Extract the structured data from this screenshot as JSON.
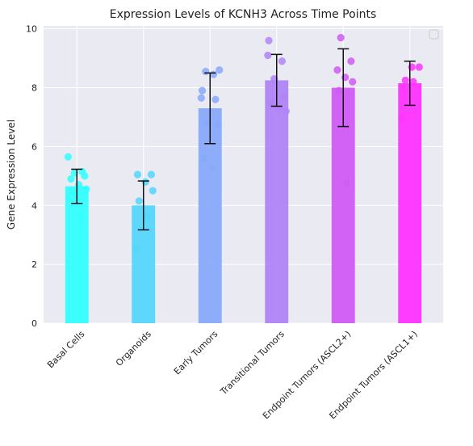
{
  "chart_data": {
    "type": "bar",
    "title": "Expression Levels of KCNH3 Across Time Points",
    "xlabel": "",
    "ylabel": "Gene Expression Level",
    "ylim": [
      0,
      10.1
    ],
    "yticks": [
      0,
      2,
      4,
      6,
      8,
      10
    ],
    "grid": true,
    "legend": "top-right",
    "categories": [
      "Basal Cells",
      "Organoids",
      "Early Tumors",
      "Transitional Tumors",
      "Endpoint Tumors (ASCL2+)",
      "Endpoint Tumors (ASCL1+)"
    ],
    "values": [
      4.65,
      4.0,
      7.3,
      8.25,
      8.0,
      8.15
    ],
    "error": [
      0.58,
      0.83,
      1.2,
      0.88,
      1.32,
      0.75
    ],
    "colors": [
      "#33ffff",
      "#55d6fb",
      "#88a9fa",
      "#b084f7",
      "#d05bf4",
      "#fe33ff"
    ],
    "points": [
      [
        5.65,
        5.15,
        5.1,
        5.0,
        4.9,
        4.7,
        4.55,
        4.45,
        3.6
      ],
      [
        5.05,
        5.05,
        4.8,
        4.5,
        4.15,
        3.6,
        2.5
      ],
      [
        8.6,
        8.55,
        8.45,
        7.9,
        7.65,
        7.6,
        6.8,
        6.75,
        5.6,
        5.25
      ],
      [
        9.6,
        9.1,
        8.9,
        8.3,
        7.7,
        7.5,
        7.3,
        7.2
      ],
      [
        9.7,
        8.9,
        8.6,
        8.35,
        8.2,
        7.9,
        4.75
      ],
      [
        8.7,
        8.7,
        8.25,
        8.2,
        6.95
      ]
    ]
  }
}
